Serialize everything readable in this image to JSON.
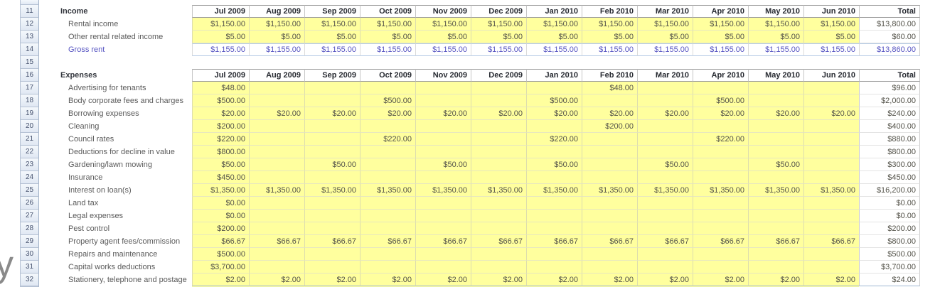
{
  "watermark": {
    "text": "y"
  },
  "colors": {
    "cell_fill_yellow": "#FFFF9E",
    "total_row_blue_text": "#5654C2",
    "blue_row_border": "#B5CBE5",
    "header_text": "#272A31",
    "value_text": "#54534A",
    "row_number_fill": "#E0E8F3"
  },
  "sheet": {
    "columns": [
      "Jul 2009",
      "Aug 2009",
      "Sep 2009",
      "Oct 2009",
      "Nov 2009",
      "Dec 2009",
      "Jan 2010",
      "Feb 2010",
      "Mar 2010",
      "Apr 2010",
      "May 2010",
      "Jun 2010",
      "Total"
    ],
    "income": {
      "row": 11,
      "section_label": "Income",
      "rows": [
        {
          "row": 12,
          "label": "Rental income",
          "monthly": [
            "$1,150.00",
            "$1,150.00",
            "$1,150.00",
            "$1,150.00",
            "$1,150.00",
            "$1,150.00",
            "$1,150.00",
            "$1,150.00",
            "$1,150.00",
            "$1,150.00",
            "$1,150.00",
            "$1,150.00"
          ],
          "total": "$13,800.00"
        },
        {
          "row": 13,
          "label": "Other rental related income",
          "monthly": [
            "$5.00",
            "$5.00",
            "$5.00",
            "$5.00",
            "$5.00",
            "$5.00",
            "$5.00",
            "$5.00",
            "$5.00",
            "$5.00",
            "$5.00",
            "$5.00"
          ],
          "total": "$60.00"
        },
        {
          "row": 14,
          "label": "Gross rent",
          "is_total_row": true,
          "monthly": [
            "$1,155.00",
            "$1,155.00",
            "$1,155.00",
            "$1,155.00",
            "$1,155.00",
            "$1,155.00",
            "$1,155.00",
            "$1,155.00",
            "$1,155.00",
            "$1,155.00",
            "$1,155.00",
            "$1,155.00"
          ],
          "total": "$13,860.00"
        }
      ]
    },
    "blank_row": 15,
    "expenses": {
      "row": 16,
      "section_label": "Expenses",
      "rows": [
        {
          "row": 17,
          "label": "Advertising for tenants",
          "monthly": [
            "$48.00",
            "",
            "",
            "",
            "",
            "",
            "",
            "$48.00",
            "",
            "",
            "",
            ""
          ],
          "total": "$96.00"
        },
        {
          "row": 18,
          "label": "Body corporate fees and charges",
          "monthly": [
            "$500.00",
            "",
            "",
            "$500.00",
            "",
            "",
            "$500.00",
            "",
            "",
            "$500.00",
            "",
            ""
          ],
          "total": "$2,000.00"
        },
        {
          "row": 19,
          "label": "Borrowing expenses",
          "monthly": [
            "$20.00",
            "$20.00",
            "$20.00",
            "$20.00",
            "$20.00",
            "$20.00",
            "$20.00",
            "$20.00",
            "$20.00",
            "$20.00",
            "$20.00",
            "$20.00"
          ],
          "total": "$240.00"
        },
        {
          "row": 20,
          "label": "Cleaning",
          "monthly": [
            "$200.00",
            "",
            "",
            "",
            "",
            "",
            "",
            "$200.00",
            "",
            "",
            "",
            ""
          ],
          "total": "$400.00"
        },
        {
          "row": 21,
          "label": "Council rates",
          "monthly": [
            "$220.00",
            "",
            "",
            "$220.00",
            "",
            "",
            "$220.00",
            "",
            "",
            "$220.00",
            "",
            ""
          ],
          "total": "$880.00"
        },
        {
          "row": 22,
          "label": "Deductions for decline in value",
          "monthly": [
            "$800.00",
            "",
            "",
            "",
            "",
            "",
            "",
            "",
            "",
            "",
            "",
            ""
          ],
          "total": "$800.00"
        },
        {
          "row": 23,
          "label": "Gardening/lawn mowing",
          "monthly": [
            "$50.00",
            "",
            "$50.00",
            "",
            "$50.00",
            "",
            "$50.00",
            "",
            "$50.00",
            "",
            "$50.00",
            ""
          ],
          "total": "$300.00"
        },
        {
          "row": 24,
          "label": "Insurance",
          "monthly": [
            "$450.00",
            "",
            "",
            "",
            "",
            "",
            "",
            "",
            "",
            "",
            "",
            ""
          ],
          "total": "$450.00"
        },
        {
          "row": 25,
          "label": "Interest on loan(s)",
          "monthly": [
            "$1,350.00",
            "$1,350.00",
            "$1,350.00",
            "$1,350.00",
            "$1,350.00",
            "$1,350.00",
            "$1,350.00",
            "$1,350.00",
            "$1,350.00",
            "$1,350.00",
            "$1,350.00",
            "$1,350.00"
          ],
          "total": "$16,200.00"
        },
        {
          "row": 26,
          "label": "Land tax",
          "monthly": [
            "$0.00",
            "",
            "",
            "",
            "",
            "",
            "",
            "",
            "",
            "",
            "",
            ""
          ],
          "total": "$0.00"
        },
        {
          "row": 27,
          "label": "Legal expenses",
          "monthly": [
            "$0.00",
            "",
            "",
            "",
            "",
            "",
            "",
            "",
            "",
            "",
            "",
            ""
          ],
          "total": "$0.00"
        },
        {
          "row": 28,
          "label": "Pest control",
          "monthly": [
            "$200.00",
            "",
            "",
            "",
            "",
            "",
            "",
            "",
            "",
            "",
            "",
            ""
          ],
          "total": "$200.00"
        },
        {
          "row": 29,
          "label": "Property agent fees/commission",
          "monthly": [
            "$66.67",
            "$66.67",
            "$66.67",
            "$66.67",
            "$66.67",
            "$66.67",
            "$66.67",
            "$66.67",
            "$66.67",
            "$66.67",
            "$66.67",
            "$66.67"
          ],
          "total": "$800.00"
        },
        {
          "row": 30,
          "label": "Repairs and maintenance",
          "monthly": [
            "$500.00",
            "",
            "",
            "",
            "",
            "",
            "",
            "",
            "",
            "",
            "",
            ""
          ],
          "total": "$500.00"
        },
        {
          "row": 31,
          "label": "Capital works deductions",
          "monthly": [
            "$3,700.00",
            "",
            "",
            "",
            "",
            "",
            "",
            "",
            "",
            "",
            "",
            ""
          ],
          "total": "$3,700.00"
        },
        {
          "row": 32,
          "label": "Stationery, telephone and postage",
          "monthly": [
            "$2.00",
            "$2.00",
            "$2.00",
            "$2.00",
            "$2.00",
            "$2.00",
            "$2.00",
            "$2.00",
            "$2.00",
            "$2.00",
            "$2.00",
            "$2.00"
          ],
          "total": "$24.00"
        }
      ]
    }
  }
}
